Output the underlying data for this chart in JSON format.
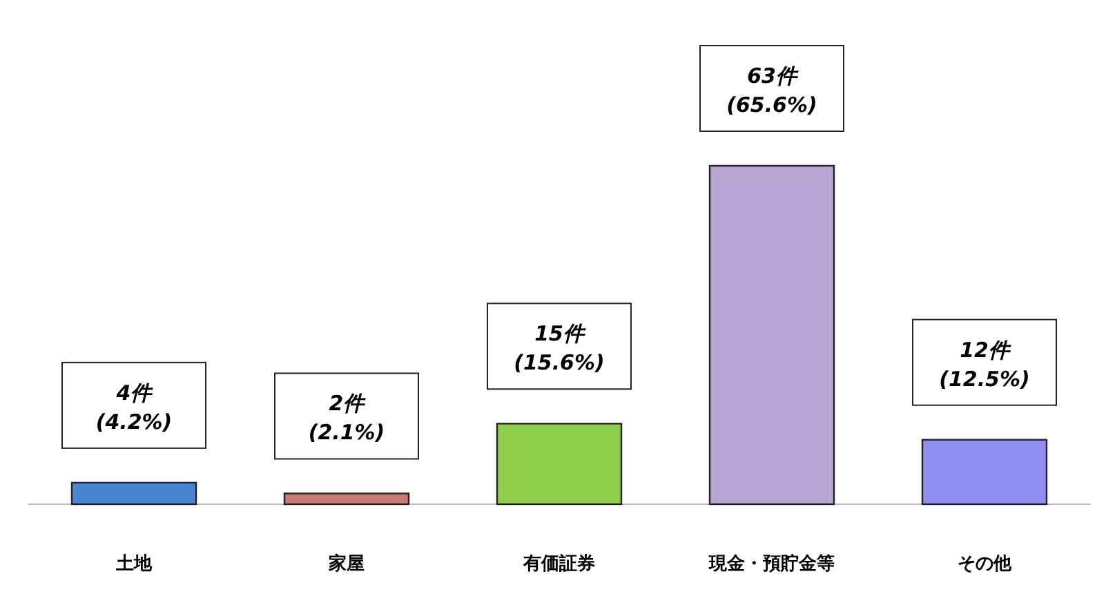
{
  "chart_data": {
    "type": "bar",
    "categories": [
      "土地",
      "家屋",
      "有価証券",
      "現金・預貯金等",
      "その他"
    ],
    "values": [
      4,
      2,
      15,
      63,
      12
    ],
    "colors": [
      "#4a86d0",
      "#c47c74",
      "#8fce4a",
      "#b7a6d2",
      "#8e8ef0"
    ],
    "value_labels": [
      "4件\n(4.2%)",
      "2件\n(2.1%)",
      "15件\n(15.6%)",
      "63件\n(65.6%)",
      "12件\n(12.5%)"
    ]
  }
}
